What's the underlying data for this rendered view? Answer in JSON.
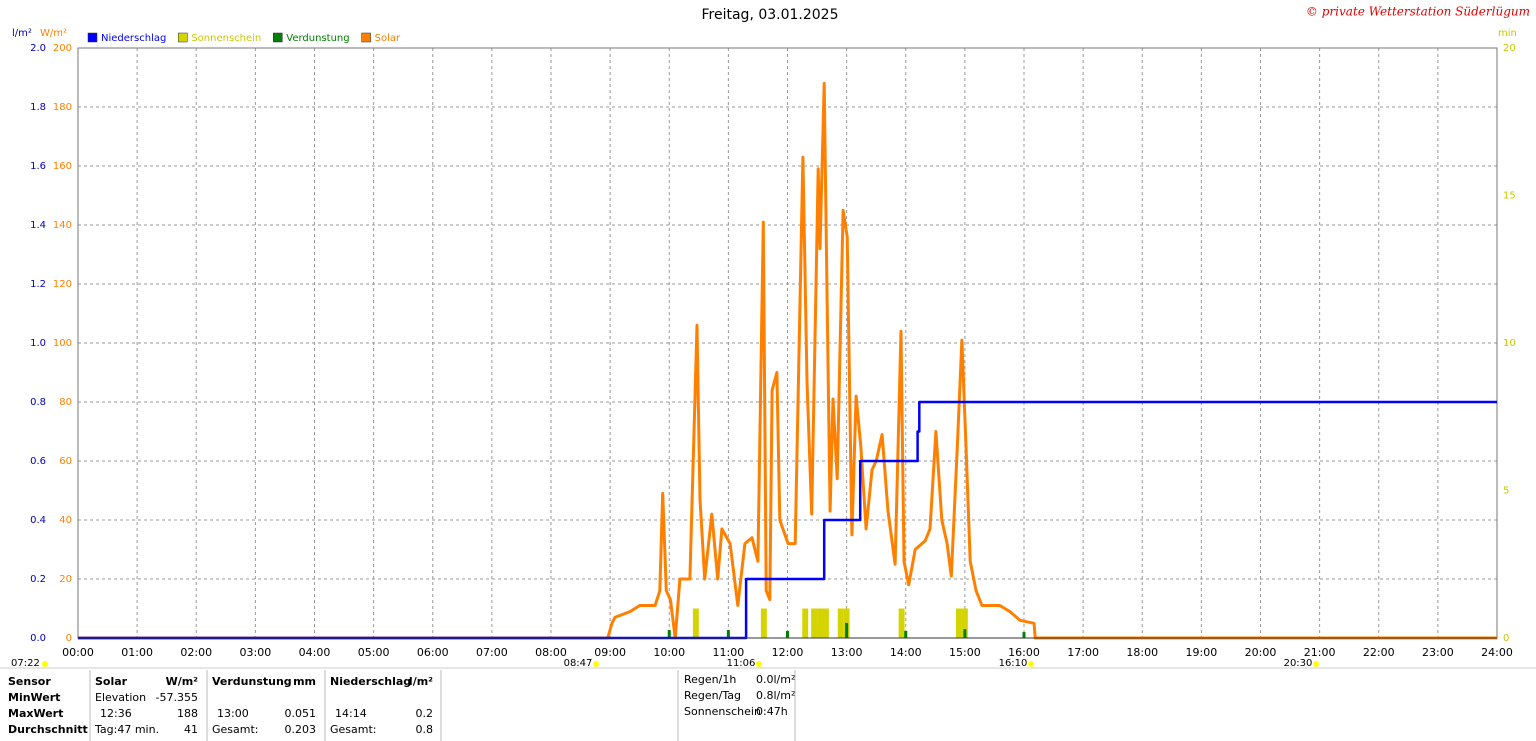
{
  "chart_data": {
    "type": "line",
    "title": "Freitag, 03.01.2025",
    "copyright": "© private Wetterstation Süderlügum",
    "ylabel": "l/m²",
    "y2label": "W/m²",
    "y3label": "min",
    "grid": true,
    "xlim": [
      0,
      24
    ],
    "xticks": [
      {
        "value": 0,
        "label": "00:00"
      },
      {
        "value": 1,
        "label": "01:00"
      },
      {
        "value": 2,
        "label": "02:00"
      },
      {
        "value": 3,
        "label": "03:00"
      },
      {
        "value": 4,
        "label": "04:00"
      },
      {
        "value": 5,
        "label": "05:00"
      },
      {
        "value": 6,
        "label": "06:00"
      },
      {
        "value": 7,
        "label": "07:00"
      },
      {
        "value": 8,
        "label": "08:00"
      },
      {
        "value": 9,
        "label": "09:00"
      },
      {
        "value": 10,
        "label": "10:00"
      },
      {
        "value": 11,
        "label": "11:00"
      },
      {
        "value": 12,
        "label": "12:00"
      },
      {
        "value": 13,
        "label": "13:00"
      },
      {
        "value": 14,
        "label": "14:00"
      },
      {
        "value": 15,
        "label": "15:00"
      },
      {
        "value": 16,
        "label": "16:00"
      },
      {
        "value": 17,
        "label": "17:00"
      },
      {
        "value": 18,
        "label": "18:00"
      },
      {
        "value": 19,
        "label": "19:00"
      },
      {
        "value": 20,
        "label": "20:00"
      },
      {
        "value": 21,
        "label": "21:00"
      },
      {
        "value": 22,
        "label": "22:00"
      },
      {
        "value": 23,
        "label": "23:00"
      },
      {
        "value": 24,
        "label": "24:00"
      }
    ],
    "ylim": [
      0,
      2
    ],
    "yticks": [
      {
        "value": 0,
        "label": "0.0"
      },
      0.2,
      0.4,
      0.6,
      0.8,
      {
        "value": 1,
        "label": "1.0"
      },
      1.2,
      1.4,
      1.6,
      1.8,
      {
        "value": 2,
        "label": "2.0"
      }
    ],
    "y2lim": [
      0,
      200
    ],
    "y2ticks": [
      0,
      20,
      40,
      60,
      80,
      100,
      120,
      140,
      160,
      180,
      200
    ],
    "y3lim": [
      0,
      20
    ],
    "y3ticks": [
      0,
      5,
      10,
      15,
      20
    ],
    "series": [
      {
        "name": "Niederschlag",
        "color": "#0000ff",
        "type": "line",
        "axis": "y",
        "x": [
          0,
          11.3,
          11.3,
          12.62,
          12.62,
          13.23,
          13.23,
          14.2,
          14.2,
          14.23,
          14.23,
          24
        ],
        "values": [
          0,
          0,
          0.2,
          0.2,
          0.4,
          0.4,
          0.6,
          0.6,
          0.7,
          0.7,
          0.8,
          0.8
        ]
      },
      {
        "name": "Sonnenschein",
        "color": "#d4d400",
        "type": "bar",
        "axis": "y3",
        "x": [
          10.4,
          11.55,
          12.25,
          12.4,
          12.5,
          12.6,
          12.85,
          12.95,
          13.88,
          14.85,
          14.95
        ],
        "values": [
          1,
          1,
          1,
          1,
          1,
          1,
          1,
          1,
          1,
          1,
          1
        ]
      },
      {
        "name": "Verdunstung",
        "color": "#008000",
        "type": "bar",
        "axis": "y",
        "x": [
          10,
          11,
          12,
          13,
          14,
          15,
          16
        ],
        "values": [
          0.027,
          0.027,
          0.024,
          0.051,
          0.024,
          0.03,
          0.02
        ]
      },
      {
        "name": "Solar",
        "color": "#ff8000",
        "type": "line",
        "axis": "y2",
        "x": [
          0,
          8.96,
          9.03,
          9.08,
          9.34,
          9.5,
          9.76,
          9.84,
          9.89,
          9.95,
          10.02,
          10.1,
          10.18,
          10.35,
          10.47,
          10.52,
          10.6,
          10.72,
          10.82,
          10.89,
          11.03,
          11.16,
          11.28,
          11.4,
          11.5,
          11.59,
          11.64,
          11.7,
          11.74,
          11.82,
          11.87,
          12.01,
          12.13,
          12.26,
          12.33,
          12.41,
          12.52,
          12.55,
          12.62,
          12.67,
          12.72,
          12.77,
          12.84,
          12.94,
          13.01,
          13.09,
          13.16,
          13.24,
          13.33,
          13.43,
          13.5,
          13.6,
          13.7,
          13.82,
          13.92,
          13.97,
          14.05,
          14.16,
          14.33,
          14.41,
          14.51,
          14.61,
          14.7,
          14.77,
          14.87,
          14.95,
          15.02,
          15.09,
          15.19,
          15.29,
          15.59,
          15.76,
          15.93,
          16.17,
          16.19,
          24
        ],
        "values": [
          0,
          0,
          5,
          7,
          9,
          11,
          11,
          16,
          49,
          16,
          13,
          0,
          20,
          20,
          106,
          47,
          20,
          42,
          20,
          37,
          32,
          11,
          32,
          34,
          26,
          141,
          16,
          13,
          84,
          90,
          40,
          32,
          32,
          163,
          87,
          42,
          159,
          132,
          188,
          115,
          43,
          81,
          54,
          145,
          136,
          35,
          82,
          65,
          37,
          57,
          60,
          69,
          43,
          25,
          104,
          26,
          18,
          30,
          33,
          37,
          70,
          40,
          32,
          21,
          64,
          101,
          64,
          26,
          16,
          11,
          11,
          9,
          6,
          5,
          0,
          0
        ]
      }
    ],
    "events": [
      "07:22",
      "08:47",
      "11:06",
      "16:10",
      "20:30"
    ],
    "stats": {
      "labels": [
        "Sensor",
        "MinWert",
        "MaxWert",
        "Durchschnitt"
      ],
      "blocks": [
        {
          "header": [
            "Solar",
            "W/m²"
          ],
          "min": [
            "Elevation",
            "-57.355"
          ],
          "max": [
            "12:36",
            "188"
          ],
          "avg": [
            "Tag:47 min.",
            "41"
          ]
        },
        {
          "header": [
            "Verdunstung",
            "mm"
          ],
          "max": [
            "13:00",
            "0.051"
          ],
          "avg": [
            "Gesamt:",
            "0.203"
          ]
        },
        {
          "header": [
            "Niederschlag",
            "l/m²"
          ],
          "max": [
            "14:14",
            "0.2"
          ],
          "avg": [
            "Gesamt:",
            "0.8"
          ]
        }
      ],
      "summary": [
        [
          "Regen/1h",
          "0.0l/m²"
        ],
        [
          "Regen/Tag",
          "0.8l/m²"
        ],
        [
          "Sonnenschein",
          "0:47h"
        ]
      ]
    }
  }
}
